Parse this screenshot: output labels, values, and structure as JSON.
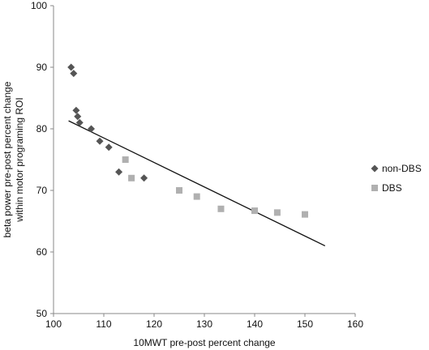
{
  "chart_data": {
    "type": "scatter",
    "title": "",
    "xlabel": "10MWT pre-post percent change",
    "ylabel_lines": [
      "beta power pre-post percent change",
      "within motor programing ROI"
    ],
    "xlim": [
      100,
      160
    ],
    "ylim": [
      50,
      100
    ],
    "x_ticks": [
      100,
      110,
      120,
      130,
      140,
      150,
      160
    ],
    "y_ticks": [
      50,
      60,
      70,
      80,
      90,
      100
    ],
    "grid": false,
    "legend_position": "right",
    "series": [
      {
        "name": "non-DBS",
        "marker": "diamond",
        "color": "#555555",
        "points": [
          {
            "x": 103.5,
            "y": 90
          },
          {
            "x": 104.0,
            "y": 89
          },
          {
            "x": 104.5,
            "y": 83
          },
          {
            "x": 104.8,
            "y": 82
          },
          {
            "x": 105.2,
            "y": 81
          },
          {
            "x": 107.5,
            "y": 80
          },
          {
            "x": 109.2,
            "y": 78
          },
          {
            "x": 111.0,
            "y": 77
          },
          {
            "x": 113.0,
            "y": 73
          },
          {
            "x": 118.0,
            "y": 72
          }
        ]
      },
      {
        "name": "DBS",
        "marker": "square",
        "color": "#b0b0b0",
        "points": [
          {
            "x": 114.3,
            "y": 75
          },
          {
            "x": 115.5,
            "y": 72
          },
          {
            "x": 125.0,
            "y": 70
          },
          {
            "x": 128.5,
            "y": 69
          },
          {
            "x": 133.3,
            "y": 67
          },
          {
            "x": 140.0,
            "y": 66.7
          },
          {
            "x": 144.5,
            "y": 66.4
          },
          {
            "x": 150.0,
            "y": 66.1
          }
        ]
      }
    ],
    "trendline": {
      "type": "linear",
      "color": "#111111",
      "from": {
        "x": 103.0,
        "y": 81.3
      },
      "to": {
        "x": 154.0,
        "y": 61.0
      }
    }
  }
}
